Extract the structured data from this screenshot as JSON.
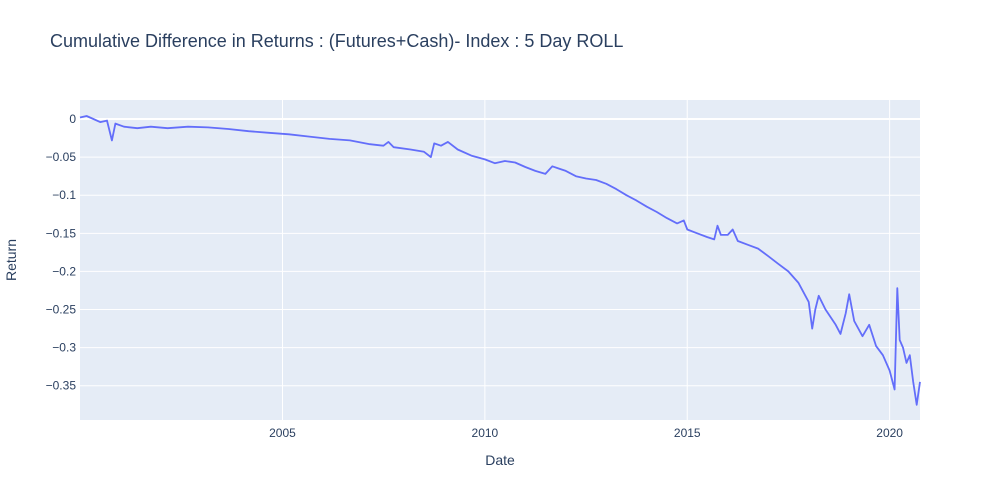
{
  "chart_data": {
    "type": "line",
    "title": "Cumulative Difference in Returns : (Futures+Cash)- Index : 5 Day ROLL",
    "xlabel": "Date",
    "ylabel": "Return",
    "grid": true,
    "legend": "none",
    "xlim": [
      "2000-01-01",
      "2020-10-01"
    ],
    "ylim": [
      -0.395,
      0.025
    ],
    "x_ticks": [
      {
        "value": "2005-01-01",
        "label": "2005"
      },
      {
        "value": "2010-01-01",
        "label": "2010"
      },
      {
        "value": "2015-01-01",
        "label": "2015"
      },
      {
        "value": "2020-01-01",
        "label": "2020"
      }
    ],
    "y_ticks": [
      {
        "value": 0,
        "label": "0"
      },
      {
        "value": -0.05,
        "label": "−0.05"
      },
      {
        "value": -0.1,
        "label": "−0.1"
      },
      {
        "value": -0.15,
        "label": "−0.15"
      },
      {
        "value": -0.2,
        "label": "−0.2"
      },
      {
        "value": -0.25,
        "label": "−0.25"
      },
      {
        "value": -0.3,
        "label": "−0.3"
      },
      {
        "value": -0.35,
        "label": "−0.35"
      }
    ],
    "colors": {
      "line": "#636efa",
      "plot_bg": "#e5ecf6",
      "grid": "#ffffff",
      "text": "#2a3f5f"
    },
    "series": [
      {
        "points": [
          [
            "2000-01-01",
            0.002
          ],
          [
            "2000-03-01",
            0.004
          ],
          [
            "2000-05-01",
            0.0
          ],
          [
            "2000-07-01",
            -0.004
          ],
          [
            "2000-09-01",
            -0.002
          ],
          [
            "2000-10-15",
            -0.028
          ],
          [
            "2000-11-15",
            -0.006
          ],
          [
            "2001-02-01",
            -0.01
          ],
          [
            "2001-06-01",
            -0.012
          ],
          [
            "2001-10-01",
            -0.01
          ],
          [
            "2002-03-01",
            -0.012
          ],
          [
            "2002-09-01",
            -0.01
          ],
          [
            "2003-03-01",
            -0.011
          ],
          [
            "2003-09-01",
            -0.013
          ],
          [
            "2004-03-01",
            -0.016
          ],
          [
            "2004-09-01",
            -0.018
          ],
          [
            "2005-03-01",
            -0.02
          ],
          [
            "2005-09-01",
            -0.023
          ],
          [
            "2006-03-01",
            -0.026
          ],
          [
            "2006-09-01",
            -0.028
          ],
          [
            "2007-03-01",
            -0.033
          ],
          [
            "2007-07-01",
            -0.035
          ],
          [
            "2007-08-15",
            -0.03
          ],
          [
            "2007-10-01",
            -0.037
          ],
          [
            "2008-03-01",
            -0.04
          ],
          [
            "2008-07-01",
            -0.043
          ],
          [
            "2008-09-01",
            -0.05
          ],
          [
            "2008-10-01",
            -0.032
          ],
          [
            "2008-12-01",
            -0.035
          ],
          [
            "2009-02-01",
            -0.03
          ],
          [
            "2009-05-01",
            -0.04
          ],
          [
            "2009-09-01",
            -0.048
          ],
          [
            "2010-01-01",
            -0.053
          ],
          [
            "2010-04-01",
            -0.058
          ],
          [
            "2010-07-01",
            -0.055
          ],
          [
            "2010-10-01",
            -0.057
          ],
          [
            "2011-01-01",
            -0.063
          ],
          [
            "2011-04-01",
            -0.068
          ],
          [
            "2011-07-01",
            -0.072
          ],
          [
            "2011-09-01",
            -0.062
          ],
          [
            "2011-11-01",
            -0.065
          ],
          [
            "2012-01-01",
            -0.068
          ],
          [
            "2012-04-01",
            -0.075
          ],
          [
            "2012-07-01",
            -0.078
          ],
          [
            "2012-10-01",
            -0.08
          ],
          [
            "2013-01-01",
            -0.085
          ],
          [
            "2013-04-01",
            -0.092
          ],
          [
            "2013-07-01",
            -0.1
          ],
          [
            "2013-10-01",
            -0.107
          ],
          [
            "2014-01-01",
            -0.115
          ],
          [
            "2014-04-01",
            -0.122
          ],
          [
            "2014-07-01",
            -0.13
          ],
          [
            "2014-10-01",
            -0.137
          ],
          [
            "2014-12-01",
            -0.133
          ],
          [
            "2015-01-01",
            -0.145
          ],
          [
            "2015-04-01",
            -0.15
          ],
          [
            "2015-07-01",
            -0.155
          ],
          [
            "2015-09-01",
            -0.158
          ],
          [
            "2015-10-01",
            -0.14
          ],
          [
            "2015-11-01",
            -0.152
          ],
          [
            "2016-01-01",
            -0.152
          ],
          [
            "2016-02-15",
            -0.145
          ],
          [
            "2016-04-01",
            -0.16
          ],
          [
            "2016-07-01",
            -0.165
          ],
          [
            "2016-10-01",
            -0.17
          ],
          [
            "2017-01-01",
            -0.18
          ],
          [
            "2017-04-01",
            -0.19
          ],
          [
            "2017-07-01",
            -0.2
          ],
          [
            "2017-10-01",
            -0.215
          ],
          [
            "2018-01-01",
            -0.24
          ],
          [
            "2018-02-01",
            -0.275
          ],
          [
            "2018-03-01",
            -0.25
          ],
          [
            "2018-04-01",
            -0.232
          ],
          [
            "2018-06-01",
            -0.25
          ],
          [
            "2018-09-01",
            -0.27
          ],
          [
            "2018-10-15",
            -0.282
          ],
          [
            "2018-12-01",
            -0.255
          ],
          [
            "2019-01-01",
            -0.23
          ],
          [
            "2019-02-15",
            -0.265
          ],
          [
            "2019-05-01",
            -0.285
          ],
          [
            "2019-07-01",
            -0.27
          ],
          [
            "2019-09-01",
            -0.298
          ],
          [
            "2019-11-01",
            -0.31
          ],
          [
            "2020-01-01",
            -0.33
          ],
          [
            "2020-02-15",
            -0.355
          ],
          [
            "2020-03-10",
            -0.222
          ],
          [
            "2020-04-01",
            -0.29
          ],
          [
            "2020-05-01",
            -0.3
          ],
          [
            "2020-06-01",
            -0.32
          ],
          [
            "2020-07-01",
            -0.31
          ],
          [
            "2020-08-01",
            -0.345
          ],
          [
            "2020-09-01",
            -0.375
          ],
          [
            "2020-10-01",
            -0.345
          ]
        ]
      }
    ]
  }
}
